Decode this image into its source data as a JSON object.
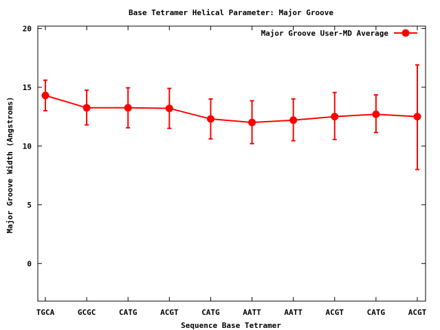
{
  "chart_data": {
    "type": "line",
    "title": "Base Tetramer Helical Parameter: Major Groove",
    "xlabel": "Sequence Base Tetramer",
    "ylabel": "Major Groove Width (Angstroms)",
    "categories": [
      "TGCA",
      "GCGC",
      "CATG",
      "ACGT",
      "CATG",
      "AATT",
      "AATT",
      "ACGT",
      "CATG",
      "ACGT"
    ],
    "yticks": [
      0,
      5,
      10,
      15,
      20
    ],
    "ylim": [
      -3.2,
      20.2
    ],
    "grid": false,
    "legend_position": "top-right",
    "series": [
      {
        "name": "Major Groove User-MD Average",
        "color": "#ff0000",
        "values": [
          14.3,
          13.25,
          13.25,
          13.2,
          12.3,
          12.0,
          12.2,
          12.5,
          12.7,
          12.5
        ],
        "error_low": [
          13.0,
          11.8,
          11.55,
          11.5,
          10.6,
          10.2,
          10.45,
          10.55,
          11.15,
          8.0
        ],
        "error_high": [
          15.6,
          14.75,
          14.95,
          14.9,
          14.0,
          13.85,
          14.0,
          14.55,
          14.35,
          16.9
        ]
      }
    ]
  }
}
